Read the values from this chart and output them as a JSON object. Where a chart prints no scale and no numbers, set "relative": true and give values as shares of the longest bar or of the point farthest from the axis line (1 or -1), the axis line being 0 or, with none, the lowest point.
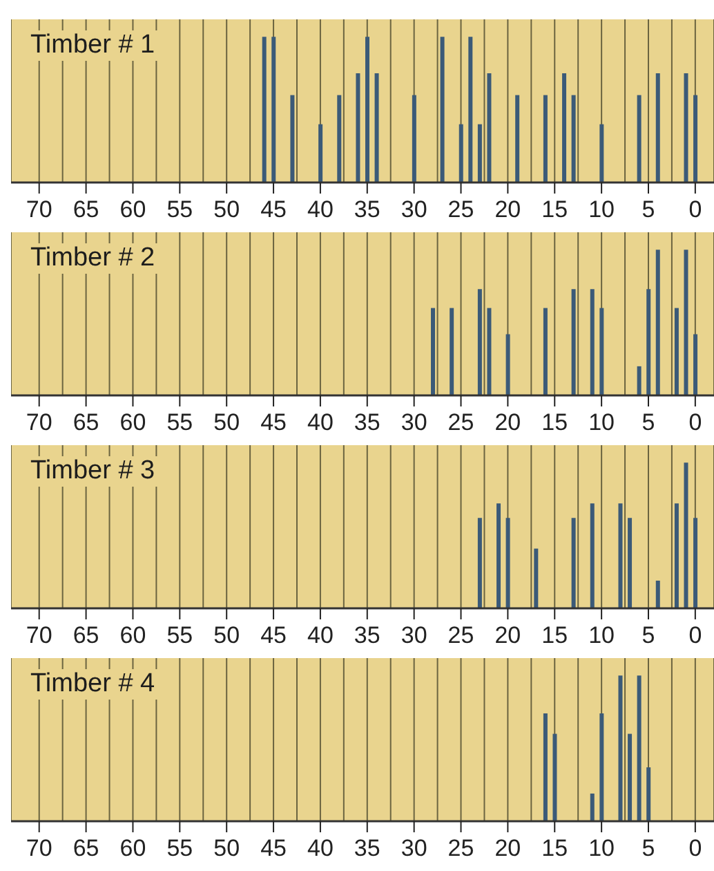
{
  "chart_data": [
    {
      "type": "bar",
      "title": "Timber # 1",
      "relative": true,
      "color": "#3b5a78",
      "grid": "x",
      "xlim": [
        73,
        -2
      ],
      "x": [
        46,
        45,
        43,
        40,
        38,
        36,
        35,
        34,
        30,
        27,
        25,
        24,
        23,
        22,
        19,
        16,
        14,
        13,
        10,
        6,
        4,
        1,
        0
      ],
      "values": [
        1,
        1,
        0.6,
        0.4,
        0.6,
        0.75,
        1,
        0.75,
        0.6,
        1,
        0.4,
        1,
        0.4,
        0.75,
        0.6,
        0.6,
        0.75,
        0.6,
        0.4,
        0.6,
        0.75,
        0.75,
        0.6
      ],
      "xticks": [
        70,
        {
          "value": 67.5,
          "label": null
        },
        65,
        {
          "value": 62.5,
          "label": null
        },
        60,
        {
          "value": 57.5,
          "label": null
        },
        55,
        {
          "value": 52.5,
          "label": null
        },
        50,
        {
          "value": 47.5,
          "label": null
        },
        45,
        {
          "value": 42.5,
          "label": null
        },
        40,
        {
          "value": 37.5,
          "label": null
        },
        35,
        {
          "value": 32.5,
          "label": null
        },
        30,
        {
          "value": 27.5,
          "label": null
        },
        25,
        {
          "value": 22.5,
          "label": null
        },
        20,
        {
          "value": 17.5,
          "label": null
        },
        15,
        {
          "value": 12.5,
          "label": null
        },
        10,
        {
          "value": 7.5,
          "label": null
        },
        5,
        {
          "value": 2.5,
          "label": null
        },
        0
      ]
    },
    {
      "type": "bar",
      "title": "Timber # 2",
      "relative": true,
      "color": "#3b5a78",
      "grid": "x",
      "xlim": [
        73,
        -2
      ],
      "x": [
        28,
        26,
        23,
        22,
        20,
        16,
        13,
        11,
        10,
        6,
        5,
        4,
        2,
        1,
        0
      ],
      "values": [
        0.6,
        0.6,
        0.73,
        0.6,
        0.42,
        0.6,
        0.73,
        0.73,
        0.6,
        0.2,
        0.73,
        1,
        0.6,
        1,
        0.42
      ],
      "xticks": [
        70,
        {
          "value": 67.5,
          "label": null
        },
        65,
        {
          "value": 62.5,
          "label": null
        },
        60,
        {
          "value": 57.5,
          "label": null
        },
        55,
        {
          "value": 52.5,
          "label": null
        },
        50,
        {
          "value": 47.5,
          "label": null
        },
        45,
        {
          "value": 42.5,
          "label": null
        },
        40,
        {
          "value": 37.5,
          "label": null
        },
        35,
        {
          "value": 32.5,
          "label": null
        },
        30,
        {
          "value": 27.5,
          "label": null
        },
        25,
        {
          "value": 22.5,
          "label": null
        },
        20,
        {
          "value": 17.5,
          "label": null
        },
        15,
        {
          "value": 12.5,
          "label": null
        },
        10,
        {
          "value": 7.5,
          "label": null
        },
        5,
        {
          "value": 2.5,
          "label": null
        },
        0
      ]
    },
    {
      "type": "bar",
      "title": "Timber # 3",
      "relative": true,
      "color": "#3b5a78",
      "grid": "x",
      "xlim": [
        73,
        -2
      ],
      "x": [
        23,
        21,
        20,
        17,
        13,
        11,
        8,
        7,
        4,
        2,
        1,
        0
      ],
      "values": [
        0.62,
        0.72,
        0.62,
        0.41,
        0.62,
        0.72,
        0.72,
        0.62,
        0.19,
        0.72,
        1,
        0.62
      ],
      "xticks": [
        70,
        {
          "value": 67.5,
          "label": null
        },
        65,
        {
          "value": 62.5,
          "label": null
        },
        60,
        {
          "value": 57.5,
          "label": null
        },
        55,
        {
          "value": 52.5,
          "label": null
        },
        50,
        {
          "value": 47.5,
          "label": null
        },
        45,
        {
          "value": 42.5,
          "label": null
        },
        40,
        {
          "value": 37.5,
          "label": null
        },
        35,
        {
          "value": 32.5,
          "label": null
        },
        30,
        {
          "value": 27.5,
          "label": null
        },
        25,
        {
          "value": 22.5,
          "label": null
        },
        20,
        {
          "value": 17.5,
          "label": null
        },
        15,
        {
          "value": 12.5,
          "label": null
        },
        10,
        {
          "value": 7.5,
          "label": null
        },
        5,
        {
          "value": 2.5,
          "label": null
        },
        0
      ]
    },
    {
      "type": "bar",
      "title": "Timber # 4",
      "relative": true,
      "color": "#3b5a78",
      "grid": "x",
      "xlim": [
        73,
        -2
      ],
      "x": [
        16,
        15,
        11,
        10,
        8,
        7,
        6,
        5
      ],
      "values": [
        0.74,
        0.6,
        0.19,
        0.74,
        1,
        0.6,
        1,
        0.37
      ],
      "xticks": [
        70,
        {
          "value": 67.5,
          "label": null
        },
        65,
        {
          "value": 62.5,
          "label": null
        },
        60,
        {
          "value": 57.5,
          "label": null
        },
        55,
        {
          "value": 52.5,
          "label": null
        },
        50,
        {
          "value": 47.5,
          "label": null
        },
        45,
        {
          "value": 42.5,
          "label": null
        },
        40,
        {
          "value": 37.5,
          "label": null
        },
        35,
        {
          "value": 32.5,
          "label": null
        },
        30,
        {
          "value": 27.5,
          "label": null
        },
        25,
        {
          "value": 22.5,
          "label": null
        },
        20,
        {
          "value": 17.5,
          "label": null
        },
        15,
        {
          "value": 12.5,
          "label": null
        },
        10,
        {
          "value": 7.5,
          "label": null
        },
        5,
        {
          "value": 2.5,
          "label": null
        },
        0
      ]
    }
  ]
}
